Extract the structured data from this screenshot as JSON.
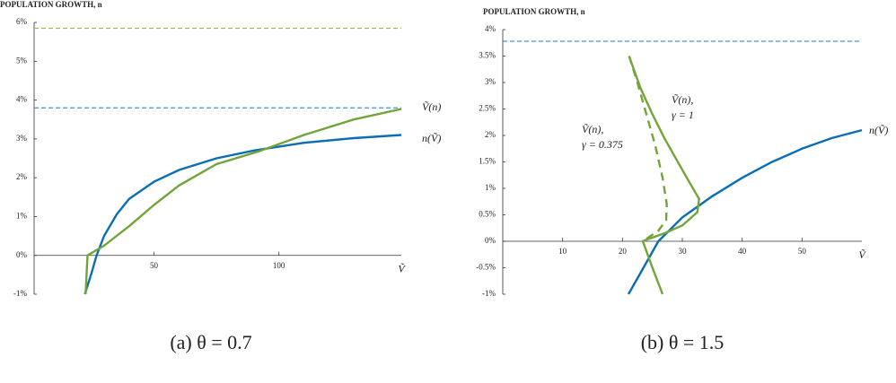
{
  "chart_data": [
    {
      "type": "line",
      "title": "POPULATION GROWTH, n",
      "caption": "(a) θ = 0.7",
      "xlabel": "Ṽ",
      "xlim": [
        2,
        149
      ],
      "ylim": [
        -1,
        6
      ],
      "xticks": [
        50,
        100
      ],
      "yticks": [
        {
          "value": -1,
          "label": "-1%"
        },
        {
          "value": 0,
          "label": "0%"
        },
        {
          "value": 1,
          "label": "1%"
        },
        {
          "value": 2,
          "label": "2%"
        },
        {
          "value": 3,
          "label": "3%"
        },
        {
          "value": 4,
          "label": "4%"
        },
        {
          "value": 5,
          "label": "5%"
        },
        {
          "value": 6,
          "label": "6%"
        }
      ],
      "hlines": [
        {
          "value": 5.85,
          "color": "#a9b565"
        },
        {
          "value": 3.8,
          "color": "#4a90c8"
        }
      ],
      "series": [
        {
          "label": [
            "n(Ṽ)"
          ],
          "color": "#0a6eb4",
          "dashed": false,
          "x": [
            22.3,
            25,
            27,
            30,
            35,
            40,
            50,
            60,
            75,
            90,
            110,
            130,
            149
          ],
          "values": [
            -1,
            -0.45,
            0,
            0.5,
            1.05,
            1.45,
            1.9,
            2.2,
            2.5,
            2.7,
            2.9,
            3.02,
            3.1
          ]
        },
        {
          "label": [
            "Ṽ(n)"
          ],
          "color": "#72a43a",
          "dashed": false,
          "x": [
            22.6,
            23.4,
            30,
            40,
            50,
            60,
            75,
            92,
            110,
            130,
            149
          ],
          "values": [
            -1,
            0,
            0.25,
            0.75,
            1.3,
            1.8,
            2.35,
            2.68,
            3.1,
            3.5,
            3.77
          ]
        }
      ]
    },
    {
      "type": "line",
      "title": "POPULATION GROWTH, n",
      "caption": "(b) θ = 1.5",
      "xlabel": "Ṽ",
      "xlim": [
        0,
        60
      ],
      "ylim": [
        -1,
        4
      ],
      "xticks": [
        10,
        20,
        30,
        40,
        50
      ],
      "yticks": [
        {
          "value": -1,
          "label": "-1%"
        },
        {
          "value": -0.5,
          "label": "-0.5%"
        },
        {
          "value": 0,
          "label": "0%"
        },
        {
          "value": 0.5,
          "label": "0.5%"
        },
        {
          "value": 1,
          "label": "1%"
        },
        {
          "value": 1.5,
          "label": "1.5%"
        },
        {
          "value": 2,
          "label": "2%"
        },
        {
          "value": 2.5,
          "label": "2.5%"
        },
        {
          "value": 3,
          "label": "3%"
        },
        {
          "value": 3.5,
          "label": "3.5%"
        },
        {
          "value": 4,
          "label": "4%"
        }
      ],
      "hlines": [
        {
          "value": 3.78,
          "color": "#4a90c8"
        }
      ],
      "series": [
        {
          "label": [
            "n(Ṽ)"
          ],
          "color": "#0a6eb4",
          "dashed": false,
          "x": [
            21,
            23.5,
            26,
            30,
            35,
            40,
            45,
            50,
            55,
            60
          ],
          "values": [
            -1,
            -0.5,
            0,
            0.45,
            0.85,
            1.2,
            1.5,
            1.75,
            1.95,
            2.1
          ]
        },
        {
          "label": [
            "Ṽ(n),",
            "γ = 1"
          ],
          "color": "#72a43a",
          "dashed": false,
          "x": [
            21.1,
            23,
            25,
            27,
            29,
            31,
            32.8,
            32.5,
            30,
            27,
            24,
            23.4,
            25,
            26.7
          ],
          "values": [
            3.5,
            2.9,
            2.4,
            1.95,
            1.55,
            1.15,
            0.8,
            0.55,
            0.3,
            0.15,
            0.03,
            0,
            -0.5,
            -1
          ]
        },
        {
          "label": [
            "Ṽ(n),",
            "γ = 0.375"
          ],
          "color": "#72a43a",
          "dashed": true,
          "x": [
            21.1,
            22.5,
            24,
            25.5,
            26.7,
            27.4,
            27.3,
            26,
            23.4
          ],
          "values": [
            3.5,
            3,
            2.4,
            1.8,
            1.2,
            0.7,
            0.4,
            0.2,
            0
          ]
        }
      ]
    }
  ]
}
